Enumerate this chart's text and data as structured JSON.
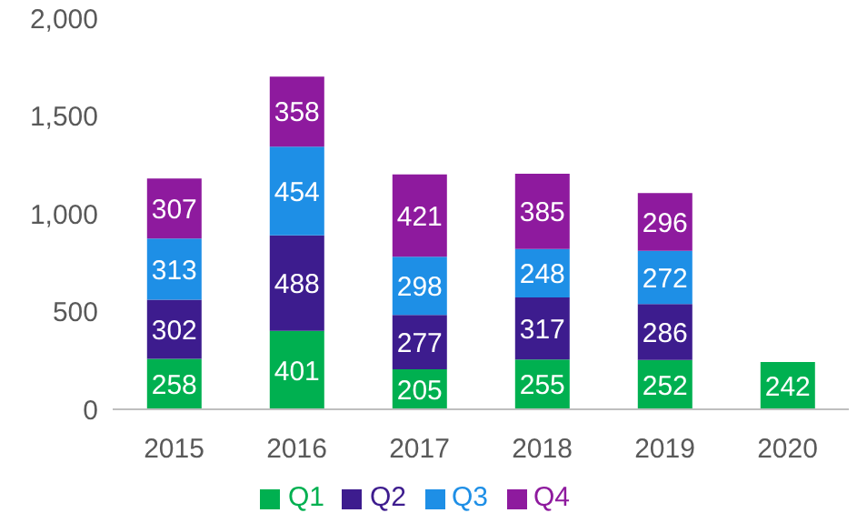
{
  "chart_data": {
    "type": "bar",
    "stacked": true,
    "categories": [
      "2015",
      "2016",
      "2017",
      "2018",
      "2019",
      "2020"
    ],
    "series": [
      {
        "name": "Q1",
        "color": "#00b050",
        "values": [
          258,
          401,
          205,
          255,
          252,
          242
        ]
      },
      {
        "name": "Q2",
        "color": "#3d1c8e",
        "values": [
          302,
          488,
          277,
          317,
          286,
          null
        ]
      },
      {
        "name": "Q3",
        "color": "#1e8fe6",
        "values": [
          313,
          454,
          298,
          248,
          272,
          null
        ]
      },
      {
        "name": "Q4",
        "color": "#8e1a9e",
        "values": [
          307,
          358,
          421,
          385,
          296,
          null
        ]
      }
    ],
    "ylim": [
      0,
      2000
    ],
    "yticks": [
      {
        "value": 0,
        "label": "0"
      },
      {
        "value": 500,
        "label": "500"
      },
      {
        "value": 1000,
        "label": "1,000"
      },
      {
        "value": 1500,
        "label": "1,500"
      },
      {
        "value": 2000,
        "label": "2,000"
      }
    ],
    "grid": false,
    "legend": "bottom",
    "data_labels": true
  }
}
